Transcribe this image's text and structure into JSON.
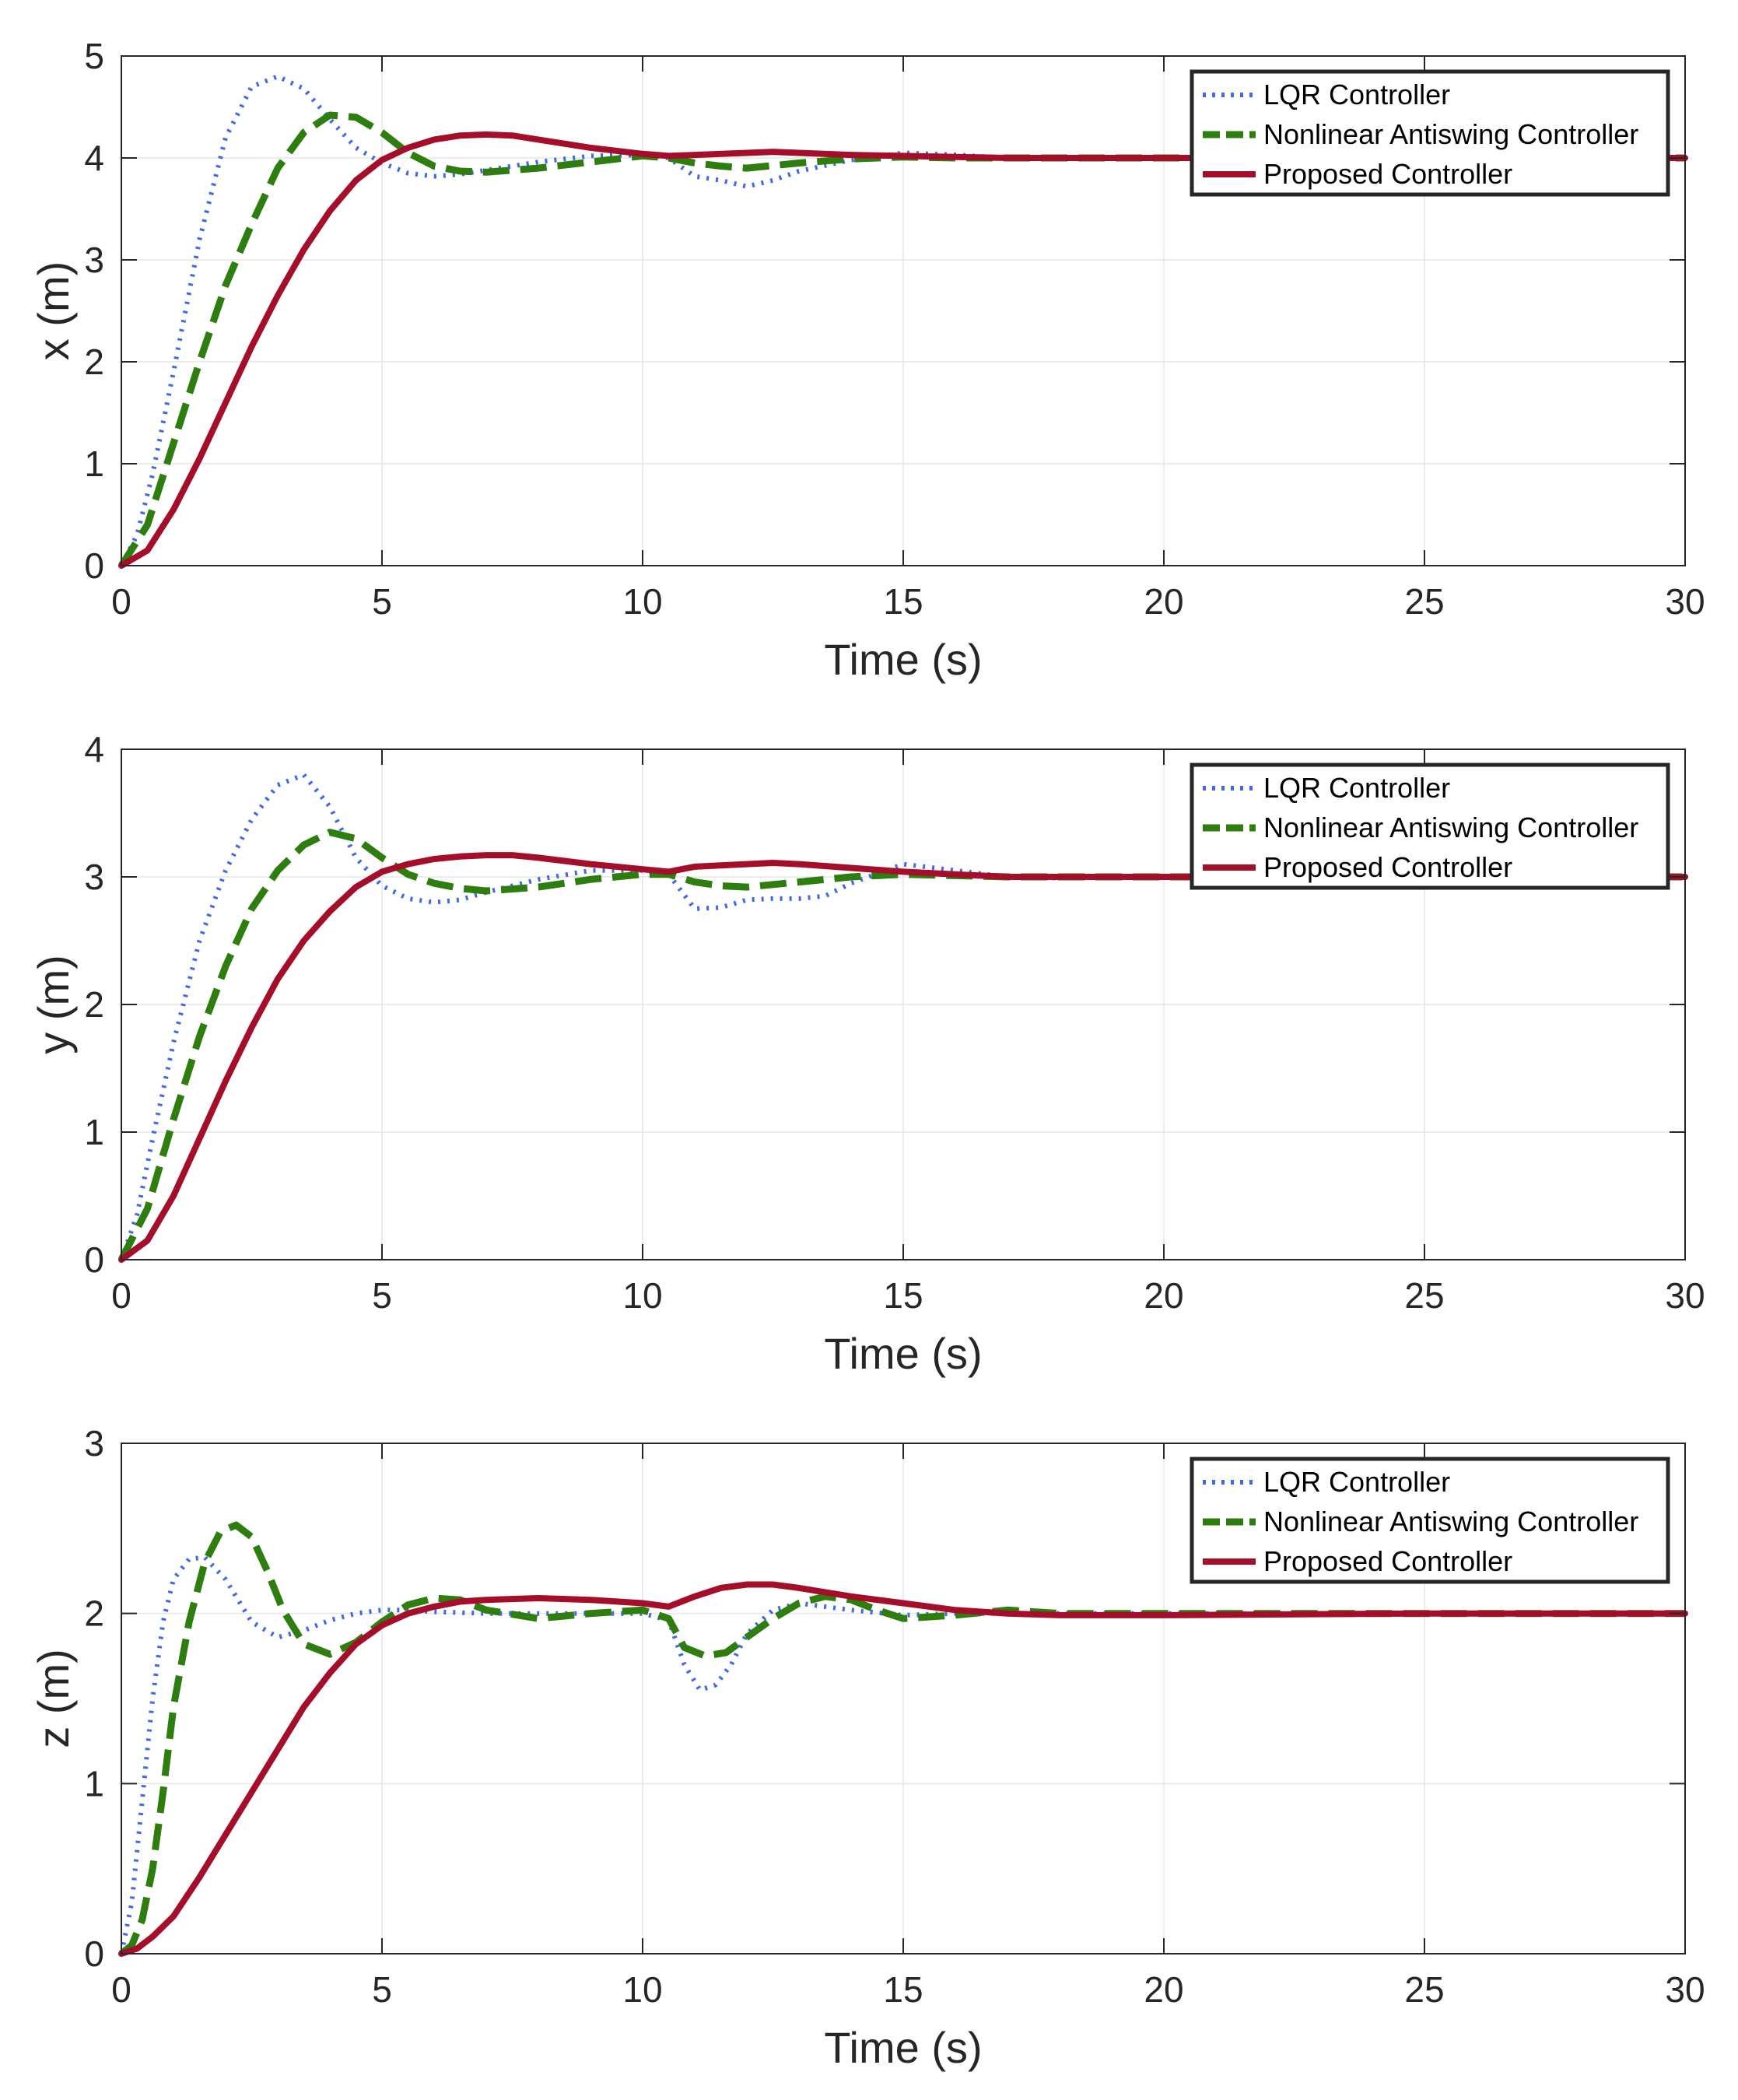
{
  "colors": {
    "lqr": "#4169E1",
    "nonlinear": "#2E7D0F",
    "proposed": "#A50E2A"
  },
  "chart_data": [
    {
      "type": "line",
      "title": "",
      "xlabel": "Time (s)",
      "ylabel": "x (m)",
      "xlim": [
        0,
        30
      ],
      "ylim": [
        0,
        5
      ],
      "xticks": [
        "0",
        "5",
        "10",
        "15",
        "20",
        "25",
        "30"
      ],
      "yticks": [
        "0",
        "1",
        "2",
        "3",
        "4",
        "5"
      ],
      "grid": true,
      "legend_position": "top-right",
      "series": [
        {
          "name": "LQR Controller",
          "style": "dotted",
          "color": "lqr",
          "x": [
            0,
            0.3,
            0.6,
            1,
            1.5,
            2,
            2.5,
            3,
            3.5,
            4,
            4.5,
            5,
            5.5,
            6,
            6.5,
            7,
            8,
            9,
            10,
            10.5,
            11,
            11.5,
            12,
            12.5,
            13,
            14,
            15,
            16,
            17,
            18,
            20,
            25,
            30
          ],
          "y": [
            0,
            0.3,
            0.9,
            1.9,
            3.2,
            4.2,
            4.7,
            4.8,
            4.68,
            4.38,
            4.1,
            3.95,
            3.85,
            3.82,
            3.84,
            3.88,
            3.96,
            4.02,
            4.03,
            4.0,
            3.82,
            3.78,
            3.72,
            3.78,
            3.87,
            3.98,
            4.05,
            4.03,
            4.0,
            3.99,
            4.0,
            4.0,
            4.0
          ]
        },
        {
          "name": "Nonlinear Antiswing Controller",
          "style": "dashed",
          "color": "nonlinear",
          "x": [
            0,
            0.5,
            1,
            1.5,
            2,
            2.5,
            3,
            3.5,
            4,
            4.5,
            5,
            5.5,
            6,
            6.5,
            7,
            8,
            9,
            10,
            10.5,
            11,
            11.5,
            12,
            13,
            14,
            15,
            16,
            17,
            20,
            25,
            30
          ],
          "y": [
            0,
            0.4,
            1.2,
            2.0,
            2.75,
            3.35,
            3.9,
            4.25,
            4.42,
            4.4,
            4.25,
            4.05,
            3.92,
            3.87,
            3.86,
            3.9,
            3.96,
            4.02,
            4.0,
            3.95,
            3.92,
            3.9,
            3.95,
            3.99,
            4.01,
            4.0,
            4.0,
            4.0,
            4.0,
            4.0
          ]
        },
        {
          "name": "Proposed Controller",
          "style": "solid",
          "color": "proposed",
          "x": [
            0,
            0.5,
            1,
            1.5,
            2,
            2.5,
            3,
            3.5,
            4,
            4.5,
            5,
            5.5,
            6,
            6.5,
            7,
            7.5,
            8,
            9,
            10,
            10.5,
            11,
            12,
            12.5,
            13,
            14,
            15,
            16,
            17,
            18,
            20,
            25,
            30
          ],
          "y": [
            0,
            0.15,
            0.55,
            1.05,
            1.6,
            2.15,
            2.65,
            3.1,
            3.48,
            3.78,
            3.98,
            4.1,
            4.18,
            4.22,
            4.23,
            4.22,
            4.18,
            4.1,
            4.04,
            4.02,
            4.03,
            4.05,
            4.06,
            4.05,
            4.03,
            4.02,
            4.01,
            4.0,
            4.0,
            4.0,
            4.0,
            4.0
          ]
        }
      ]
    },
    {
      "type": "line",
      "title": "",
      "xlabel": "Time (s)",
      "ylabel": "y (m)",
      "xlim": [
        0,
        30
      ],
      "ylim": [
        0,
        4
      ],
      "xticks": [
        "0",
        "5",
        "10",
        "15",
        "20",
        "25",
        "30"
      ],
      "yticks": [
        "0",
        "1",
        "2",
        "3",
        "4"
      ],
      "grid": true,
      "legend_position": "top-right",
      "series": [
        {
          "name": "LQR Controller",
          "style": "dotted",
          "color": "lqr",
          "x": [
            0,
            0.3,
            0.6,
            1,
            1.5,
            2,
            2.5,
            3,
            3.5,
            4,
            4.5,
            5,
            5.5,
            6,
            6.5,
            7,
            8,
            9,
            10,
            10.5,
            11,
            11.5,
            12,
            12.5,
            13,
            13.5,
            14,
            15,
            16,
            17,
            18,
            20,
            25,
            30
          ],
          "y": [
            0,
            0.35,
            0.95,
            1.7,
            2.5,
            3.05,
            3.45,
            3.72,
            3.8,
            3.55,
            3.15,
            2.93,
            2.83,
            2.8,
            2.82,
            2.88,
            2.98,
            3.05,
            3.05,
            3.02,
            2.75,
            2.76,
            2.82,
            2.83,
            2.83,
            2.85,
            2.95,
            3.1,
            3.05,
            3.0,
            2.99,
            3.0,
            3.0,
            3.0
          ]
        },
        {
          "name": "Nonlinear Antiswing Controller",
          "style": "dashed",
          "color": "nonlinear",
          "x": [
            0,
            0.5,
            1,
            1.5,
            2,
            2.5,
            3,
            3.5,
            4,
            4.5,
            5,
            5.5,
            6,
            6.5,
            7,
            8,
            9,
            10,
            10.5,
            11,
            11.5,
            12,
            13,
            14,
            15,
            16,
            17,
            20,
            25,
            30
          ],
          "y": [
            0,
            0.4,
            1.1,
            1.75,
            2.3,
            2.75,
            3.05,
            3.25,
            3.35,
            3.3,
            3.15,
            3.02,
            2.95,
            2.91,
            2.89,
            2.92,
            2.98,
            3.02,
            3.02,
            2.96,
            2.93,
            2.92,
            2.96,
            3.0,
            3.02,
            3.01,
            3.0,
            3.0,
            3.0,
            3.0
          ]
        },
        {
          "name": "Proposed Controller",
          "style": "solid",
          "color": "proposed",
          "x": [
            0,
            0.5,
            1,
            1.5,
            2,
            2.5,
            3,
            3.5,
            4,
            4.5,
            5,
            5.5,
            6,
            6.5,
            7,
            7.5,
            8,
            9,
            10,
            10.5,
            11,
            12,
            12.5,
            13,
            14,
            15,
            16,
            17,
            18,
            20,
            25,
            30
          ],
          "y": [
            0,
            0.15,
            0.5,
            0.95,
            1.4,
            1.82,
            2.2,
            2.5,
            2.73,
            2.92,
            3.04,
            3.1,
            3.14,
            3.16,
            3.17,
            3.17,
            3.15,
            3.1,
            3.06,
            3.04,
            3.08,
            3.1,
            3.11,
            3.1,
            3.07,
            3.04,
            3.02,
            3.0,
            3.0,
            3.0,
            3.0,
            3.0
          ]
        }
      ]
    },
    {
      "type": "line",
      "title": "",
      "xlabel": "Time (s)",
      "ylabel": "z (m)",
      "xlim": [
        0,
        30
      ],
      "ylim": [
        0,
        3
      ],
      "xticks": [
        "0",
        "5",
        "10",
        "15",
        "20",
        "25",
        "30"
      ],
      "yticks": [
        "0",
        "1",
        "2",
        "3"
      ],
      "grid": true,
      "legend_position": "top-right",
      "series": [
        {
          "name": "LQR Controller",
          "style": "dotted",
          "color": "lqr",
          "x": [
            0,
            0.2,
            0.4,
            0.6,
            0.8,
            1,
            1.3,
            1.6,
            2,
            2.5,
            3,
            3.5,
            4,
            4.5,
            5,
            5.5,
            6,
            7,
            8,
            9,
            10,
            10.5,
            10.8,
            11.1,
            11.4,
            11.7,
            12,
            12.5,
            13,
            14,
            15,
            16,
            17,
            18,
            20,
            25,
            30
          ],
          "y": [
            0,
            0.3,
            0.9,
            1.5,
            1.95,
            2.2,
            2.32,
            2.33,
            2.2,
            1.95,
            1.86,
            1.9,
            1.96,
            2.0,
            2.02,
            2.02,
            2.01,
            2.0,
            2.0,
            2.0,
            2.0,
            1.96,
            1.7,
            1.55,
            1.58,
            1.7,
            1.88,
            2.02,
            2.06,
            2.02,
            1.99,
            2.0,
            2.0,
            2.0,
            2.0,
            2.0,
            2.0
          ]
        },
        {
          "name": "Nonlinear Antiswing Controller",
          "style": "dashed",
          "color": "nonlinear",
          "x": [
            0,
            0.2,
            0.4,
            0.6,
            0.8,
            1,
            1.3,
            1.6,
            1.9,
            2.2,
            2.5,
            2.8,
            3.1,
            3.5,
            4,
            4.5,
            5,
            5.5,
            6,
            6.5,
            7,
            8,
            9,
            10,
            10.5,
            10.8,
            11.2,
            11.6,
            12,
            12.5,
            13,
            13.5,
            14,
            14.5,
            15,
            16,
            17,
            18,
            20,
            25,
            30
          ],
          "y": [
            0,
            0.05,
            0.2,
            0.5,
            0.95,
            1.45,
            1.95,
            2.3,
            2.48,
            2.52,
            2.45,
            2.25,
            2.02,
            1.82,
            1.76,
            1.83,
            1.95,
            2.05,
            2.09,
            2.08,
            2.02,
            1.97,
            2.0,
            2.02,
            1.97,
            1.8,
            1.75,
            1.77,
            1.86,
            1.97,
            2.06,
            2.1,
            2.08,
            2.02,
            1.97,
            1.99,
            2.02,
            2.0,
            2.0,
            2.0,
            2.0
          ]
        },
        {
          "name": "Proposed Controller",
          "style": "solid",
          "color": "proposed",
          "x": [
            0,
            0.3,
            0.6,
            1,
            1.5,
            2,
            2.5,
            3,
            3.5,
            4,
            4.5,
            5,
            5.5,
            6,
            6.5,
            7,
            8,
            9,
            10,
            10.5,
            11,
            11.5,
            12,
            12.5,
            13,
            14,
            15,
            16,
            17,
            18,
            20,
            25,
            30
          ],
          "y": [
            0,
            0.03,
            0.1,
            0.22,
            0.45,
            0.7,
            0.95,
            1.2,
            1.45,
            1.65,
            1.82,
            1.93,
            2.0,
            2.04,
            2.07,
            2.08,
            2.09,
            2.08,
            2.06,
            2.04,
            2.1,
            2.15,
            2.17,
            2.17,
            2.15,
            2.1,
            2.06,
            2.02,
            2.0,
            1.99,
            1.99,
            2.0,
            2.0
          ]
        }
      ]
    }
  ]
}
